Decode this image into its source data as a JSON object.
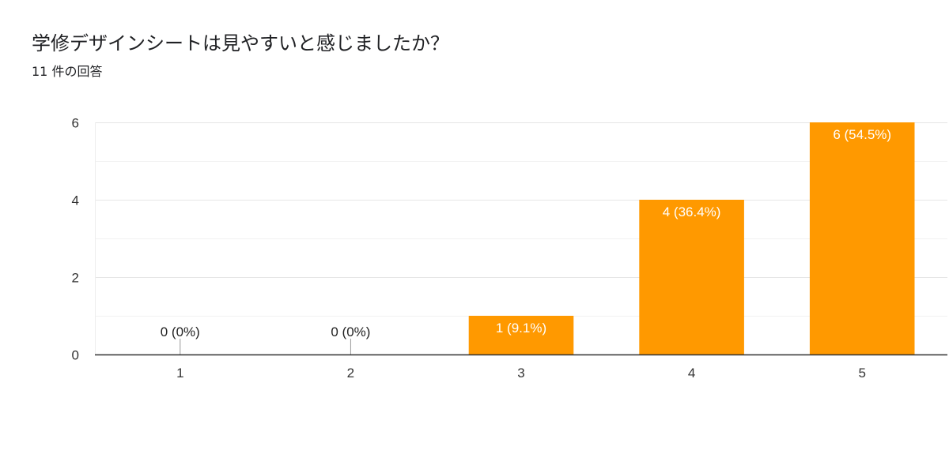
{
  "title": "学修デザインシートは見やすいと感じましたか？",
  "subtitle": "11 件の回答",
  "colors": {
    "bar": "#ff9900",
    "grid": "#e6e6e6",
    "axis": "#333333",
    "text": "#202124",
    "label_inside": "#ffffff",
    "label_outside": "#222222"
  },
  "chart_data": {
    "type": "bar",
    "categories": [
      "1",
      "2",
      "3",
      "4",
      "5"
    ],
    "values": [
      0,
      0,
      1,
      4,
      6
    ],
    "data_labels": [
      "0 (0%)",
      "0 (0%)",
      "1 (9.1%)",
      "4 (36.4%)",
      "6 (54.5%)"
    ],
    "ylim": [
      0,
      6
    ],
    "y_ticks": [
      "0",
      "2",
      "4",
      "6"
    ],
    "y_tick_values": [
      0,
      2,
      4,
      6
    ],
    "minor_gridlines": [
      1,
      3,
      5
    ],
    "grid": true,
    "xlabel": "",
    "ylabel": ""
  }
}
